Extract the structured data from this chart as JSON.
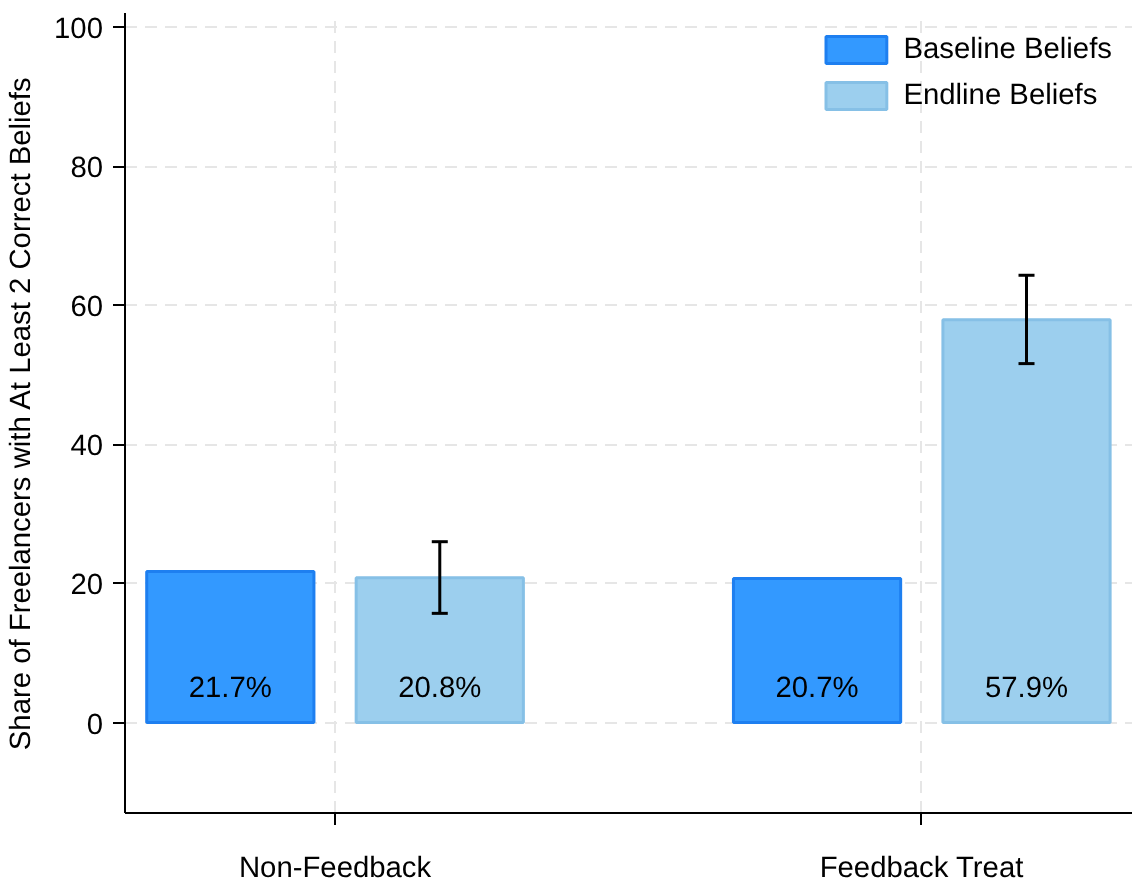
{
  "chart_data": {
    "type": "bar",
    "ylabel": "Share of Freelancers with At Least 2 Correct Beliefs",
    "categories": [
      "Non-Feedback",
      "Feedback Treat"
    ],
    "series": [
      {
        "name": "Baseline Beliefs",
        "color": "#3399ff",
        "values": [
          21.7,
          20.7
        ],
        "value_labels": [
          "21.7%",
          "20.7%"
        ]
      },
      {
        "name": "Endline Beliefs",
        "color": "#9ccfee",
        "values": [
          20.8,
          57.9
        ],
        "value_labels": [
          "20.8%",
          "57.9%"
        ],
        "errors": [
          [
            15.7,
            26.0
          ],
          [
            51.6,
            64.3
          ]
        ]
      }
    ],
    "ylim": [
      -13,
      102
    ],
    "yticks": [
      0,
      20,
      40,
      60,
      80,
      100
    ],
    "grid": true,
    "legend": "top right"
  }
}
